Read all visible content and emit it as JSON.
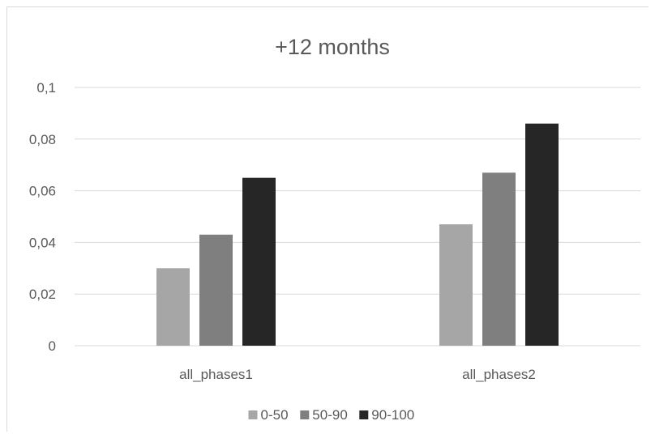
{
  "chart_data": {
    "type": "bar",
    "title": "+12 months",
    "xlabel": "",
    "ylabel": "",
    "categories": [
      "all_phases1",
      "all_phases2"
    ],
    "series": [
      {
        "name": "0-50",
        "values": [
          0.03,
          0.047
        ],
        "color": "#a6a6a6"
      },
      {
        "name": "50-90",
        "values": [
          0.043,
          0.067
        ],
        "color": "#7f7f7f"
      },
      {
        "name": "90-100",
        "values": [
          0.065,
          0.086
        ],
        "color": "#262626"
      }
    ],
    "ylim": [
      0,
      0.1
    ],
    "yticks": [
      "0",
      "0,02",
      "0,04",
      "0,06",
      "0,08",
      "0,1"
    ],
    "grid": true,
    "legend_position": "bottom",
    "gridline_color": "#d9d9d9",
    "text_color": "#595959"
  }
}
